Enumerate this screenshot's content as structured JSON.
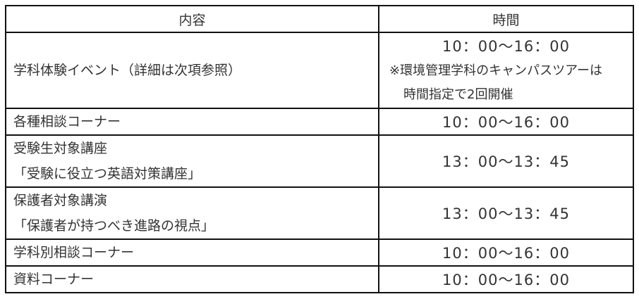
{
  "headers": {
    "content": "内容",
    "time": "時間"
  },
  "rows": [
    {
      "content": [
        "学科体験イベント（詳細は次項参照）"
      ],
      "time": "10：00～16：00",
      "note": [
        "※環境管理学科のキャンパスツアーは",
        "時間指定で2回開催"
      ]
    },
    {
      "content": [
        "各種相談コーナー"
      ],
      "time": "10：00～16：00"
    },
    {
      "content": [
        "受験生対象講座",
        "「受験に役立つ英語対策講座」"
      ],
      "time": "13：00～13：45"
    },
    {
      "content": [
        "保護者対象講演",
        "「保護者が持つべき進路の視点」"
      ],
      "time": "13：00～13：45"
    },
    {
      "content": [
        "学科別相談コーナー"
      ],
      "time": "10：00～16：00"
    },
    {
      "content": [
        "資料コーナー"
      ],
      "time": "10：00～16：00"
    }
  ]
}
